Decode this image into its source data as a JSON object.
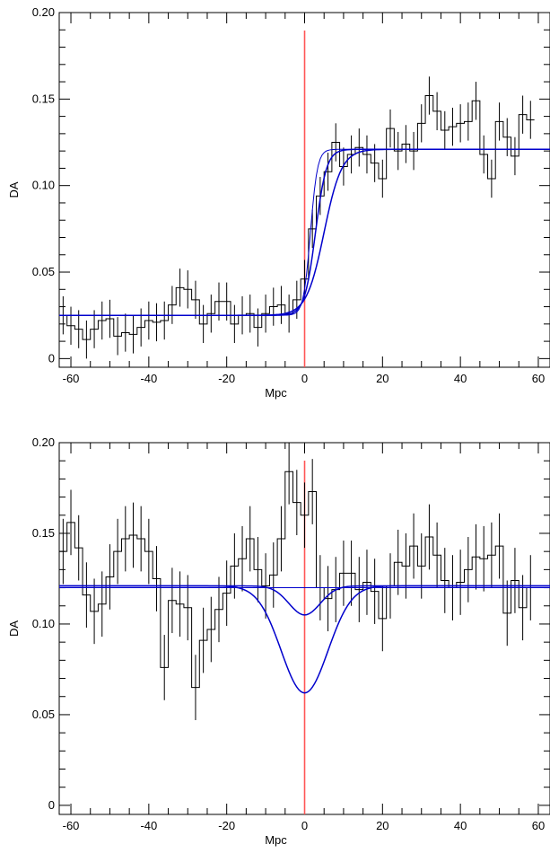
{
  "chart_data": [
    {
      "type": "line",
      "xlabel": "Mpc",
      "ylabel": "DA",
      "xlim": [
        -63,
        63
      ],
      "ylim": [
        -0.005,
        0.2
      ],
      "xticks": [
        -60,
        -40,
        -20,
        0,
        20,
        40,
        60
      ],
      "xtick_labels": [
        "-60",
        "-40",
        "-20",
        "0",
        "20",
        "40",
        "60"
      ],
      "yticks": [
        0,
        0.05,
        0.1,
        0.15,
        0.2
      ],
      "ytick_labels": [
        "0",
        "0.05",
        "0.10",
        "0.15",
        "0.20"
      ],
      "histogram": {
        "bin_width": 2,
        "x_start": -63,
        "values": [
          0.025,
          0.019,
          0.017,
          0.011,
          0.017,
          0.022,
          0.023,
          0.013,
          0.015,
          0.014,
          0.018,
          0.022,
          0.021,
          0.022,
          0.031,
          0.041,
          0.04,
          0.034,
          0.02,
          0.026,
          0.033,
          0.033,
          0.02,
          0.025,
          0.026,
          0.018,
          0.026,
          0.03,
          0.031,
          0.026,
          0.034,
          0.046,
          0.075,
          0.094,
          0.108,
          0.125,
          0.111,
          0.118,
          0.122,
          0.118,
          0.113,
          0.104,
          0.133,
          0.12,
          0.124,
          0.12,
          0.136,
          0.152,
          0.143,
          0.132,
          0.134,
          0.136,
          0.137,
          0.149,
          0.118,
          0.104,
          0.137,
          0.128,
          0.117,
          0.141,
          0.138
        ],
        "error": 0.011,
        "color": "#000000"
      },
      "models": [
        {
          "kind": "step",
          "low": 0.025,
          "high": 0.121,
          "center": 1.5,
          "width": 1.8,
          "color": "#0000cc"
        },
        {
          "kind": "step",
          "low": 0.025,
          "high": 0.121,
          "center": 2.8,
          "width": 2.8,
          "color": "#0000cc"
        },
        {
          "kind": "step",
          "low": 0.025,
          "high": 0.121,
          "center": 5.0,
          "width": 4.5,
          "color": "#0000cc"
        }
      ],
      "vline": {
        "x": 0,
        "color": "#ff5555"
      }
    },
    {
      "type": "line",
      "xlabel": "Mpc",
      "ylabel": "DA",
      "xlim": [
        -63,
        63
      ],
      "ylim": [
        -0.005,
        0.2
      ],
      "xticks": [
        -60,
        -40,
        -20,
        0,
        20,
        40,
        60
      ],
      "xtick_labels": [
        "-60",
        "-40",
        "-20",
        "0",
        "20",
        "40",
        "60"
      ],
      "yticks": [
        0,
        0.05,
        0.1,
        0.15,
        0.2
      ],
      "ytick_labels": [
        "0",
        "0.05",
        "0.10",
        "0.15",
        "0.20"
      ],
      "histogram": {
        "bin_width": 2,
        "x_start": -63,
        "values": [
          0.14,
          0.156,
          0.142,
          0.116,
          0.107,
          0.111,
          0.126,
          0.14,
          0.147,
          0.149,
          0.147,
          0.14,
          0.125,
          0.076,
          0.113,
          0.111,
          0.109,
          0.065,
          0.091,
          0.097,
          0.108,
          0.117,
          0.132,
          0.136,
          0.147,
          0.13,
          0.121,
          0.127,
          0.147,
          0.184,
          0.167,
          0.16,
          0.173,
          0.12,
          0.114,
          0.119,
          0.128,
          0.128,
          0.119,
          0.123,
          0.118,
          0.103,
          0.121,
          0.134,
          0.132,
          0.143,
          0.132,
          0.148,
          0.138,
          0.124,
          0.12,
          0.123,
          0.13,
          0.137,
          0.136,
          0.138,
          0.143,
          0.106,
          0.124,
          0.109,
          0.12
        ],
        "error": 0.018,
        "color": "#000000"
      },
      "models": [
        {
          "kind": "flat",
          "value": 0.12,
          "color": "#0000cc"
        },
        {
          "kind": "dip",
          "base": 0.121,
          "depth": 0.016,
          "sigma": 4.0,
          "color": "#0000cc"
        },
        {
          "kind": "dip",
          "base": 0.121,
          "depth": 0.059,
          "sigma": 6.0,
          "color": "#0000cc"
        }
      ],
      "vline": {
        "x": 0,
        "color": "#ff5555"
      }
    }
  ]
}
